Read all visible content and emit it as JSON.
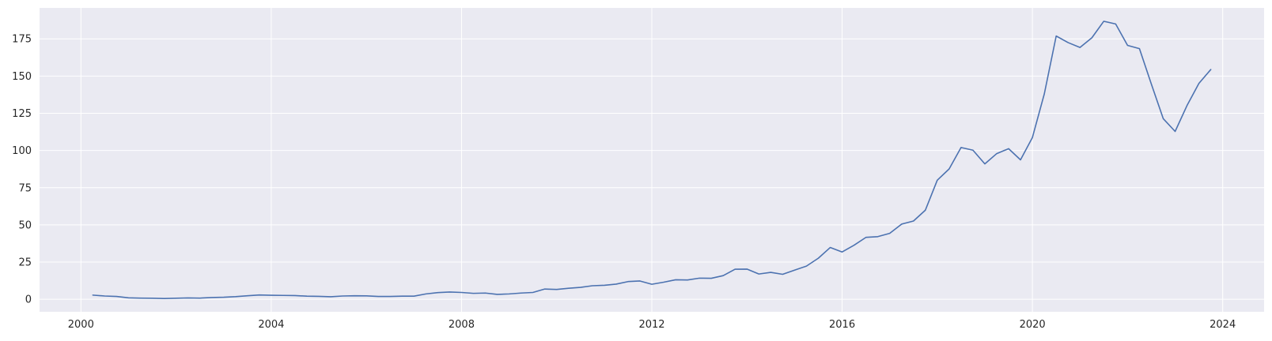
{
  "chart_data": {
    "type": "line",
    "title": "",
    "xlabel": "",
    "ylabel": "",
    "xlim": [
      1999.13,
      2024.87
    ],
    "ylim": [
      -8.4,
      195.8
    ],
    "x_ticks": [
      2000,
      2004,
      2008,
      2012,
      2016,
      2020,
      2024
    ],
    "x_tick_labels": [
      "2000",
      "2004",
      "2008",
      "2012",
      "2016",
      "2020",
      "2024"
    ],
    "y_ticks": [
      0,
      25,
      50,
      75,
      100,
      125,
      150,
      175
    ],
    "y_tick_labels": [
      "0",
      "25",
      "50",
      "75",
      "100",
      "125",
      "150",
      "175"
    ],
    "grid": true,
    "colors": {
      "background": "#eaeaf2",
      "grid": "#ffffff",
      "line": "#4c72b0",
      "text": "#262626"
    },
    "series": [
      {
        "x": [
          2000.25,
          2000.5,
          2000.75,
          2001.0,
          2001.25,
          2001.5,
          2001.75,
          2002.0,
          2002.25,
          2002.5,
          2002.75,
          2003.0,
          2003.25,
          2003.5,
          2003.75,
          2004.0,
          2004.25,
          2004.5,
          2004.75,
          2005.0,
          2005.25,
          2005.5,
          2005.75,
          2006.0,
          2006.25,
          2006.5,
          2006.75,
          2007.0,
          2007.25,
          2007.5,
          2007.75,
          2008.0,
          2008.25,
          2008.5,
          2008.75,
          2009.0,
          2009.25,
          2009.5,
          2009.75,
          2010.0,
          2010.25,
          2010.5,
          2010.75,
          2011.0,
          2011.25,
          2011.5,
          2011.75,
          2012.0,
          2012.25,
          2012.5,
          2012.75,
          2013.0,
          2013.25,
          2013.5,
          2013.75,
          2014.0,
          2014.25,
          2014.5,
          2014.75,
          2015.0,
          2015.25,
          2015.5,
          2015.75,
          2016.0,
          2016.25,
          2016.5,
          2016.75,
          2017.0,
          2017.25,
          2017.5,
          2017.75,
          2018.0,
          2018.25,
          2018.5,
          2018.75,
          2019.0,
          2019.25,
          2019.5,
          2019.75,
          2020.0,
          2020.25,
          2020.5,
          2020.75,
          2021.0,
          2021.25,
          2021.5,
          2021.75,
          2022.0,
          2022.25,
          2022.5,
          2022.75,
          2023.0,
          2023.25,
          2023.5,
          2023.75
        ],
        "values": [
          2.8,
          2.2,
          1.9,
          1.0,
          0.8,
          0.7,
          0.5,
          0.7,
          0.9,
          0.8,
          1.2,
          1.4,
          1.8,
          2.4,
          2.9,
          2.7,
          2.6,
          2.5,
          2.1,
          2.0,
          1.7,
          2.2,
          2.4,
          2.3,
          1.9,
          1.9,
          2.1,
          2.1,
          3.6,
          4.5,
          4.9,
          4.6,
          4.0,
          4.2,
          3.3,
          3.6,
          4.2,
          4.6,
          6.9,
          6.6,
          7.4,
          8.0,
          9.1,
          9.4,
          10.2,
          11.9,
          12.3,
          10.1,
          11.5,
          13.1,
          13.0,
          14.2,
          14.1,
          15.9,
          20.2,
          20.3,
          17.0,
          18.1,
          16.8,
          19.6,
          22.3,
          27.6,
          34.8,
          31.8,
          36.3,
          41.6,
          42.1,
          44.3,
          50.5,
          52.6,
          59.9,
          80.0,
          87.6,
          102.0,
          100.2,
          91.0,
          97.9,
          101.2,
          93.7,
          108.7,
          138.0,
          176.9,
          172.5,
          169.2,
          175.7,
          186.8,
          185.0,
          170.6,
          168.4,
          144.6,
          121.4,
          112.8,
          130.2,
          145.1,
          154.4
        ]
      }
    ]
  }
}
